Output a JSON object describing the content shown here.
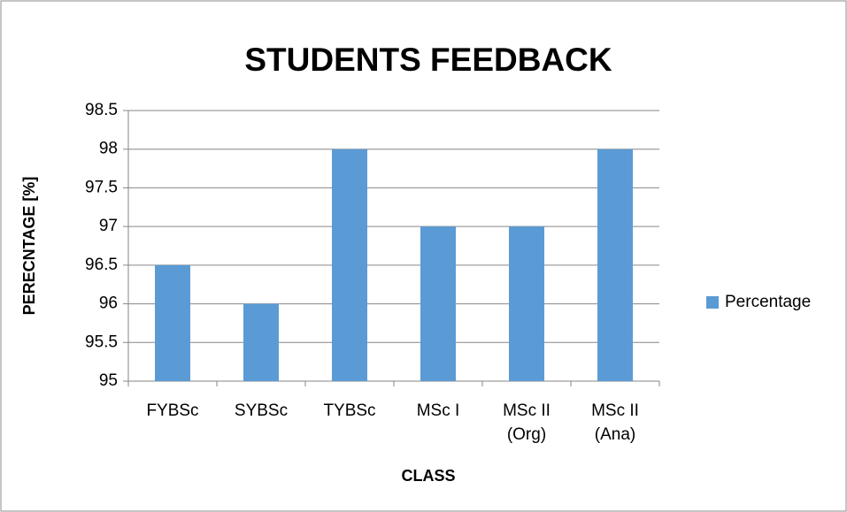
{
  "chart_data": {
    "type": "bar",
    "title": "STUDENTS FEEDBACK",
    "x_label": "CLASS",
    "y_label": "PERECNTAGE [%]",
    "categories": [
      "FYBSc",
      "SYBSc",
      "TYBSc",
      "MSc I",
      "MSc II\n(Org)",
      "MSc II\n(Ana)"
    ],
    "series": [
      {
        "name": "Percentage",
        "color": "#5b9bd5",
        "values": [
          96.5,
          96,
          98,
          97,
          97,
          98
        ]
      }
    ],
    "ylim": [
      95,
      98.5
    ],
    "yticks": [
      95,
      95.5,
      96,
      96.5,
      97,
      97.5,
      98,
      98.5
    ],
    "grid": true,
    "legend": "right"
  }
}
